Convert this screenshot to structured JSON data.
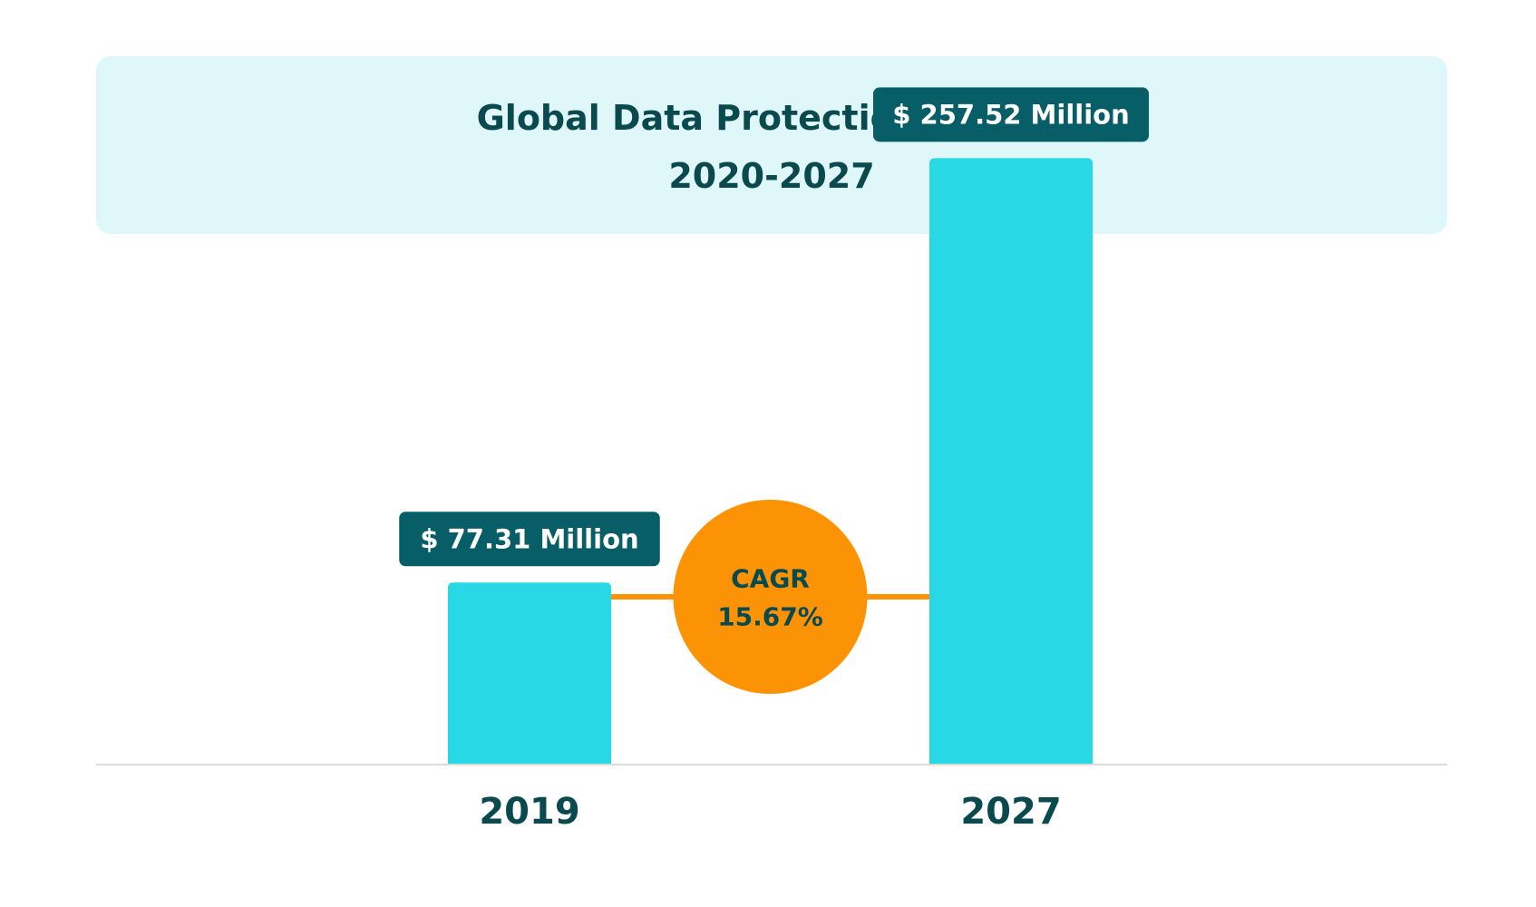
{
  "chart_data": {
    "type": "bar",
    "title": "Global Data Protection Market",
    "subtitle": "2020-2027",
    "categories": [
      "2019",
      "2027"
    ],
    "values": [
      77.31,
      257.52
    ],
    "value_labels": [
      "$ 77.31 Million",
      "$ 257.52 Million"
    ],
    "xlabel": "",
    "ylabel": "",
    "ylim": [
      0,
      290
    ],
    "grid": false,
    "legend": "none",
    "annotation": {
      "line1": "CAGR",
      "line2": "15.67%"
    },
    "colors": {
      "bar": "#28d8e4",
      "label_box": "#075e66",
      "label_text": "#ffffff",
      "cagr_circle": "#fb9305",
      "cagr_text": "#0a4a4f",
      "axis": "#dcdcdc",
      "category_text": "#0a4a4f",
      "title_bg": "#e0f7fa"
    }
  }
}
